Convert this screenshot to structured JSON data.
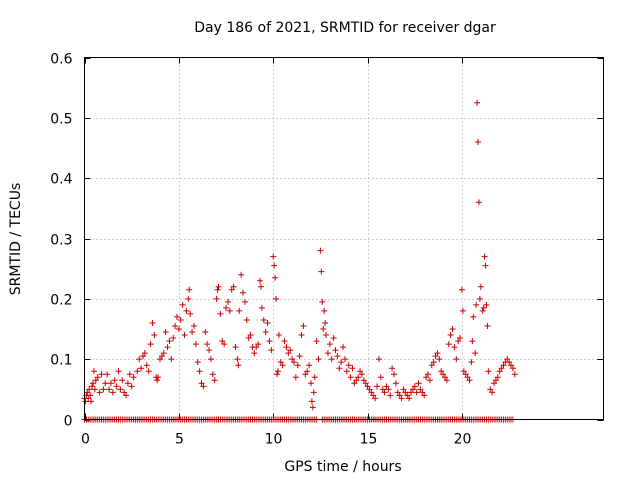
{
  "chart_data": {
    "type": "scatter",
    "title": "Day 186 of 2021, SRMTID for receiver dgar",
    "xlabel": "GPS time / hours",
    "ylabel": "SRMTID / TECUs",
    "xlim": [
      0,
      27.5
    ],
    "ylim": [
      0,
      0.6
    ],
    "grid": true,
    "marker": "+",
    "color": "#cc0000",
    "xticks": [
      0,
      5,
      10,
      15,
      20
    ],
    "xtick_labels": [
      "0",
      "5",
      "10",
      "15",
      "20"
    ],
    "yticks": [
      0,
      0.1,
      0.2,
      0.3,
      0.4,
      0.5,
      0.6
    ],
    "ytick_labels": [
      "0",
      "0.1",
      "0.2",
      "0.3",
      "0.4",
      "0.5",
      "0.6"
    ],
    "series": [
      {
        "name": "SRMTID",
        "points": [
          [
            0.0,
            0.035
          ],
          [
            0.05,
            0.03
          ],
          [
            0.1,
            0.04
          ],
          [
            0.15,
            0.045
          ],
          [
            0.2,
            0.035
          ],
          [
            0.25,
            0.05
          ],
          [
            0.3,
            0.04
          ],
          [
            0.35,
            0.03
          ],
          [
            0.4,
            0.055
          ],
          [
            0.45,
            0.06
          ],
          [
            0.5,
            0.08
          ],
          [
            0.55,
            0.05
          ],
          [
            0.6,
            0.065
          ],
          [
            0.7,
            0.07
          ],
          [
            0.8,
            0.045
          ],
          [
            0.9,
            0.075
          ],
          [
            1.0,
            0.05
          ],
          [
            1.1,
            0.06
          ],
          [
            1.2,
            0.075
          ],
          [
            1.3,
            0.05
          ],
          [
            1.4,
            0.06
          ],
          [
            1.5,
            0.045
          ],
          [
            1.6,
            0.065
          ],
          [
            1.7,
            0.055
          ],
          [
            1.8,
            0.08
          ],
          [
            1.9,
            0.05
          ],
          [
            2.0,
            0.065
          ],
          [
            2.1,
            0.045
          ],
          [
            2.2,
            0.04
          ],
          [
            2.3,
            0.06
          ],
          [
            2.4,
            0.075
          ],
          [
            2.5,
            0.055
          ],
          [
            2.6,
            0.07
          ],
          [
            2.8,
            0.08
          ],
          [
            2.9,
            0.1
          ],
          [
            3.0,
            0.085
          ],
          [
            3.1,
            0.105
          ],
          [
            3.2,
            0.11
          ],
          [
            3.3,
            0.09
          ],
          [
            3.4,
            0.08
          ],
          [
            3.5,
            0.125
          ],
          [
            3.6,
            0.16
          ],
          [
            3.7,
            0.14
          ],
          [
            3.8,
            0.07
          ],
          [
            3.85,
            0.065
          ],
          [
            3.9,
            0.07
          ],
          [
            4.0,
            0.1
          ],
          [
            4.1,
            0.105
          ],
          [
            4.2,
            0.11
          ],
          [
            4.3,
            0.145
          ],
          [
            4.4,
            0.12
          ],
          [
            4.5,
            0.13
          ],
          [
            4.6,
            0.1
          ],
          [
            4.7,
            0.135
          ],
          [
            4.8,
            0.155
          ],
          [
            4.9,
            0.17
          ],
          [
            5.0,
            0.15
          ],
          [
            5.1,
            0.165
          ],
          [
            5.2,
            0.19
          ],
          [
            5.3,
            0.14
          ],
          [
            5.4,
            0.18
          ],
          [
            5.5,
            0.2
          ],
          [
            5.55,
            0.215
          ],
          [
            5.6,
            0.175
          ],
          [
            5.7,
            0.145
          ],
          [
            5.8,
            0.155
          ],
          [
            5.9,
            0.125
          ],
          [
            6.0,
            0.095
          ],
          [
            6.1,
            0.08
          ],
          [
            6.2,
            0.06
          ],
          [
            6.3,
            0.055
          ],
          [
            6.4,
            0.145
          ],
          [
            6.5,
            0.125
          ],
          [
            6.6,
            0.115
          ],
          [
            6.7,
            0.1
          ],
          [
            6.8,
            0.075
          ],
          [
            6.9,
            0.065
          ],
          [
            7.0,
            0.2
          ],
          [
            7.05,
            0.215
          ],
          [
            7.1,
            0.22
          ],
          [
            7.2,
            0.175
          ],
          [
            7.3,
            0.13
          ],
          [
            7.4,
            0.125
          ],
          [
            7.5,
            0.185
          ],
          [
            7.6,
            0.195
          ],
          [
            7.7,
            0.18
          ],
          [
            7.8,
            0.215
          ],
          [
            7.9,
            0.22
          ],
          [
            8.0,
            0.12
          ],
          [
            8.1,
            0.1
          ],
          [
            8.15,
            0.09
          ],
          [
            8.2,
            0.18
          ],
          [
            8.3,
            0.24
          ],
          [
            8.4,
            0.21
          ],
          [
            8.5,
            0.195
          ],
          [
            8.6,
            0.165
          ],
          [
            8.7,
            0.135
          ],
          [
            8.8,
            0.14
          ],
          [
            8.9,
            0.12
          ],
          [
            9.0,
            0.11
          ],
          [
            9.1,
            0.12
          ],
          [
            9.2,
            0.125
          ],
          [
            9.3,
            0.23
          ],
          [
            9.35,
            0.22
          ],
          [
            9.4,
            0.185
          ],
          [
            9.5,
            0.165
          ],
          [
            9.6,
            0.145
          ],
          [
            9.7,
            0.16
          ],
          [
            9.8,
            0.13
          ],
          [
            9.9,
            0.115
          ],
          [
            10.0,
            0.27
          ],
          [
            10.05,
            0.255
          ],
          [
            10.1,
            0.235
          ],
          [
            10.15,
            0.2
          ],
          [
            10.2,
            0.075
          ],
          [
            10.25,
            0.08
          ],
          [
            10.3,
            0.14
          ],
          [
            10.4,
            0.095
          ],
          [
            10.5,
            0.09
          ],
          [
            10.6,
            0.13
          ],
          [
            10.7,
            0.12
          ],
          [
            10.8,
            0.11
          ],
          [
            10.9,
            0.115
          ],
          [
            11.0,
            0.1
          ],
          [
            11.1,
            0.095
          ],
          [
            11.2,
            0.07
          ],
          [
            11.3,
            0.09
          ],
          [
            11.4,
            0.105
          ],
          [
            11.5,
            0.14
          ],
          [
            11.6,
            0.155
          ],
          [
            11.7,
            0.075
          ],
          [
            11.8,
            0.08
          ],
          [
            11.9,
            0.09
          ],
          [
            12.0,
            0.06
          ],
          [
            12.05,
            0.03
          ],
          [
            12.1,
            0.02
          ],
          [
            12.15,
            0.045
          ],
          [
            12.2,
            0.07
          ],
          [
            12.3,
            0.13
          ],
          [
            12.4,
            0.1
          ],
          [
            12.5,
            0.28
          ],
          [
            12.55,
            0.245
          ],
          [
            12.6,
            0.195
          ],
          [
            12.65,
            0.15
          ],
          [
            12.7,
            0.18
          ],
          [
            12.75,
            0.16
          ],
          [
            12.8,
            0.14
          ],
          [
            12.9,
            0.11
          ],
          [
            13.0,
            0.125
          ],
          [
            13.1,
            0.1
          ],
          [
            13.2,
            0.135
          ],
          [
            13.3,
            0.115
          ],
          [
            13.4,
            0.105
          ],
          [
            13.5,
            0.085
          ],
          [
            13.6,
            0.095
          ],
          [
            13.7,
            0.12
          ],
          [
            13.8,
            0.1
          ],
          [
            13.9,
            0.08
          ],
          [
            14.0,
            0.09
          ],
          [
            14.1,
            0.07
          ],
          [
            14.2,
            0.085
          ],
          [
            14.3,
            0.06
          ],
          [
            14.4,
            0.065
          ],
          [
            14.5,
            0.07
          ],
          [
            14.6,
            0.08
          ],
          [
            14.7,
            0.075
          ],
          [
            14.8,
            0.065
          ],
          [
            14.9,
            0.06
          ],
          [
            15.0,
            0.055
          ],
          [
            15.1,
            0.05
          ],
          [
            15.2,
            0.045
          ],
          [
            15.3,
            0.04
          ],
          [
            15.4,
            0.035
          ],
          [
            15.5,
            0.055
          ],
          [
            15.6,
            0.1
          ],
          [
            15.7,
            0.07
          ],
          [
            15.8,
            0.05
          ],
          [
            15.9,
            0.045
          ],
          [
            16.0,
            0.055
          ],
          [
            16.1,
            0.05
          ],
          [
            16.2,
            0.04
          ],
          [
            16.3,
            0.085
          ],
          [
            16.4,
            0.075
          ],
          [
            16.5,
            0.06
          ],
          [
            16.6,
            0.045
          ],
          [
            16.7,
            0.04
          ],
          [
            16.8,
            0.035
          ],
          [
            16.9,
            0.05
          ],
          [
            17.0,
            0.045
          ],
          [
            17.1,
            0.04
          ],
          [
            17.2,
            0.035
          ],
          [
            17.3,
            0.045
          ],
          [
            17.4,
            0.05
          ],
          [
            17.5,
            0.055
          ],
          [
            17.6,
            0.045
          ],
          [
            17.7,
            0.06
          ],
          [
            17.8,
            0.05
          ],
          [
            17.9,
            0.045
          ],
          [
            18.0,
            0.04
          ],
          [
            18.1,
            0.07
          ],
          [
            18.2,
            0.075
          ],
          [
            18.3,
            0.065
          ],
          [
            18.4,
            0.09
          ],
          [
            18.5,
            0.095
          ],
          [
            18.6,
            0.105
          ],
          [
            18.7,
            0.11
          ],
          [
            18.8,
            0.1
          ],
          [
            18.9,
            0.08
          ],
          [
            19.0,
            0.075
          ],
          [
            19.1,
            0.07
          ],
          [
            19.2,
            0.065
          ],
          [
            19.3,
            0.125
          ],
          [
            19.4,
            0.14
          ],
          [
            19.5,
            0.15
          ],
          [
            19.6,
            0.12
          ],
          [
            19.7,
            0.1
          ],
          [
            19.8,
            0.13
          ],
          [
            19.9,
            0.135
          ],
          [
            20.0,
            0.215
          ],
          [
            20.05,
            0.18
          ],
          [
            20.1,
            0.08
          ],
          [
            20.2,
            0.075
          ],
          [
            20.3,
            0.07
          ],
          [
            20.4,
            0.065
          ],
          [
            20.5,
            0.095
          ],
          [
            20.55,
            0.13
          ],
          [
            20.6,
            0.17
          ],
          [
            20.7,
            0.11
          ],
          [
            20.75,
            0.19
          ],
          [
            20.8,
            0.525
          ],
          [
            20.85,
            0.46
          ],
          [
            20.9,
            0.36
          ],
          [
            20.95,
            0.2
          ],
          [
            21.0,
            0.22
          ],
          [
            21.1,
            0.18
          ],
          [
            21.15,
            0.185
          ],
          [
            21.2,
            0.27
          ],
          [
            21.25,
            0.255
          ],
          [
            21.3,
            0.19
          ],
          [
            21.35,
            0.155
          ],
          [
            21.4,
            0.08
          ],
          [
            21.5,
            0.05
          ],
          [
            21.6,
            0.045
          ],
          [
            21.7,
            0.06
          ],
          [
            21.8,
            0.065
          ],
          [
            21.9,
            0.07
          ],
          [
            22.0,
            0.08
          ],
          [
            22.1,
            0.085
          ],
          [
            22.2,
            0.09
          ],
          [
            22.3,
            0.095
          ],
          [
            22.4,
            0.1
          ],
          [
            22.5,
            0.095
          ],
          [
            22.6,
            0.09
          ],
          [
            22.7,
            0.085
          ],
          [
            22.8,
            0.075
          ]
        ],
        "zero_band": {
          "x_start": 0.0,
          "x_end": 22.75,
          "value": 0,
          "gaps": [
            [
              12.35,
              12.55
            ]
          ]
        }
      }
    ]
  }
}
